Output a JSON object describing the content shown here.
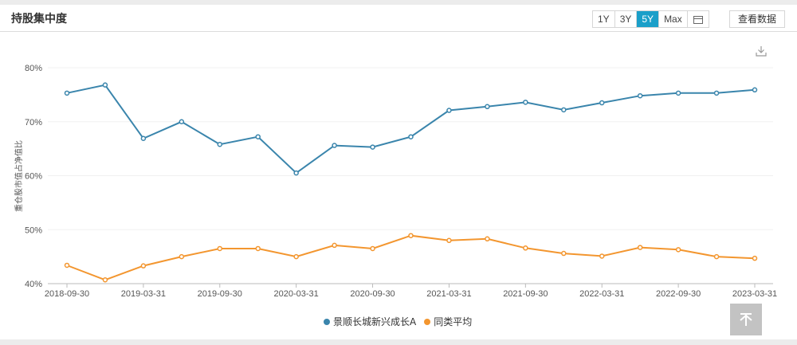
{
  "header": {
    "title": "持股集中度",
    "ranges": [
      "1Y",
      "3Y",
      "5Y",
      "Max"
    ],
    "active_range": "5Y",
    "view_data_label": "查看数据"
  },
  "icons": {
    "calendar": "calendar-icon",
    "download": "download-icon",
    "back_to_top": "back-to-top-icon"
  },
  "colors": {
    "fund": "#3a85ac",
    "category_avg": "#f3962f",
    "active_range_bg": "#1a9fc9"
  },
  "chart_data": {
    "type": "line",
    "title": "持股集中度",
    "xlabel": "",
    "ylabel": "重仓股市值占净值比",
    "ylim": [
      40,
      80
    ],
    "yticks": [
      "40%",
      "50%",
      "60%",
      "70%",
      "80%"
    ],
    "xtick_labels": [
      "2018-09-30",
      "2019-03-31",
      "2019-09-30",
      "2020-03-31",
      "2020-09-30",
      "2021-03-31",
      "2021-09-30",
      "2022-03-31",
      "2022-09-30",
      "2023-03-31"
    ],
    "grid": true,
    "legend_position": "bottom",
    "x": [
      "2018-09-30",
      "2018-12-31",
      "2019-03-31",
      "2019-06-30",
      "2019-09-30",
      "2019-12-31",
      "2020-03-31",
      "2020-06-30",
      "2020-09-30",
      "2020-12-31",
      "2021-03-31",
      "2021-06-30",
      "2021-09-30",
      "2021-12-31",
      "2022-03-31",
      "2022-06-30",
      "2022-09-30",
      "2022-12-31",
      "2023-03-31"
    ],
    "series": [
      {
        "name": "景顺长城新兴成长A",
        "color": "#3a85ac",
        "values": [
          75.3,
          76.8,
          66.9,
          70.0,
          65.8,
          67.2,
          60.5,
          65.6,
          65.3,
          67.2,
          72.1,
          72.8,
          73.6,
          72.2,
          73.5,
          74.8,
          75.3,
          75.3,
          75.9
        ]
      },
      {
        "name": "同类平均",
        "color": "#f3962f",
        "values": [
          43.4,
          40.7,
          43.3,
          45.0,
          46.5,
          46.5,
          45.0,
          47.1,
          46.5,
          48.9,
          48.0,
          48.3,
          46.6,
          45.6,
          45.1,
          46.7,
          46.3,
          45.0,
          44.7
        ]
      }
    ]
  }
}
